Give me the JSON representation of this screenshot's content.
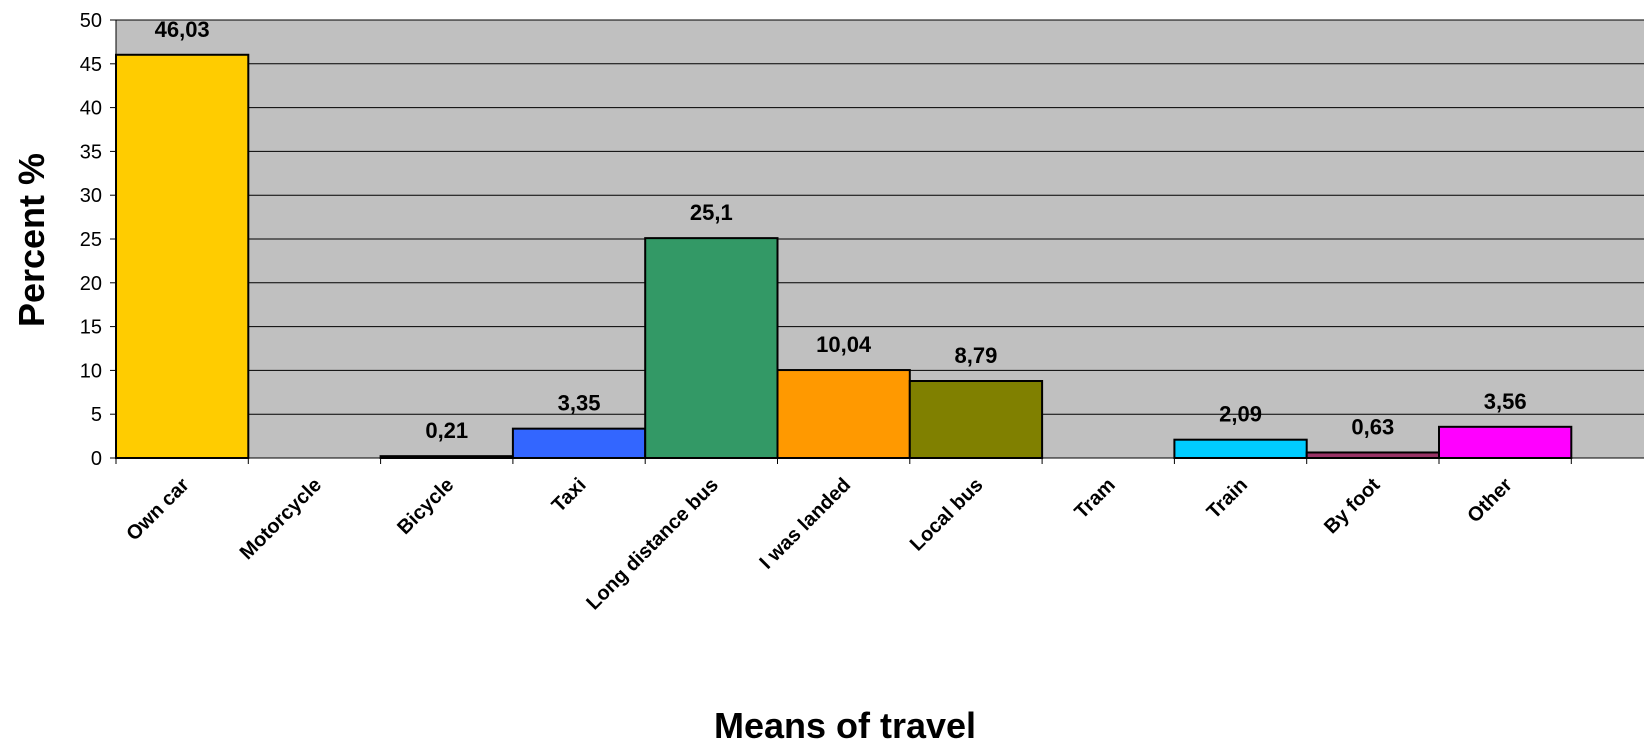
{
  "chart_data": {
    "type": "bar",
    "title": "",
    "xlabel": "Means of travel",
    "ylabel": "Percent %",
    "ylim": [
      0,
      50
    ],
    "yticks": [
      0,
      5,
      10,
      15,
      20,
      25,
      30,
      35,
      40,
      45,
      50
    ],
    "grid": true,
    "plot_background": "#c0c0c0",
    "categories": [
      "Own car",
      "Motorcycle",
      "Bicycle",
      "Taxi",
      "Long distance bus",
      "I was landed",
      "Local bus",
      "Tram",
      "Train",
      "By foot",
      "Other"
    ],
    "values": [
      46.03,
      0,
      0.21,
      3.35,
      25.1,
      10.04,
      8.79,
      0,
      2.09,
      0.63,
      3.56
    ],
    "value_labels": [
      "46,03",
      "",
      "0,21",
      "3,35",
      "25,1",
      "10,04",
      "8,79",
      "",
      "2,09",
      "0,63",
      "3,56"
    ],
    "colors": [
      "#ffcc00",
      "#ffcc00",
      "#000000",
      "#3366ff",
      "#339966",
      "#ff9900",
      "#808000",
      "#808080",
      "#00ccff",
      "#993366",
      "#ff00ff"
    ]
  }
}
